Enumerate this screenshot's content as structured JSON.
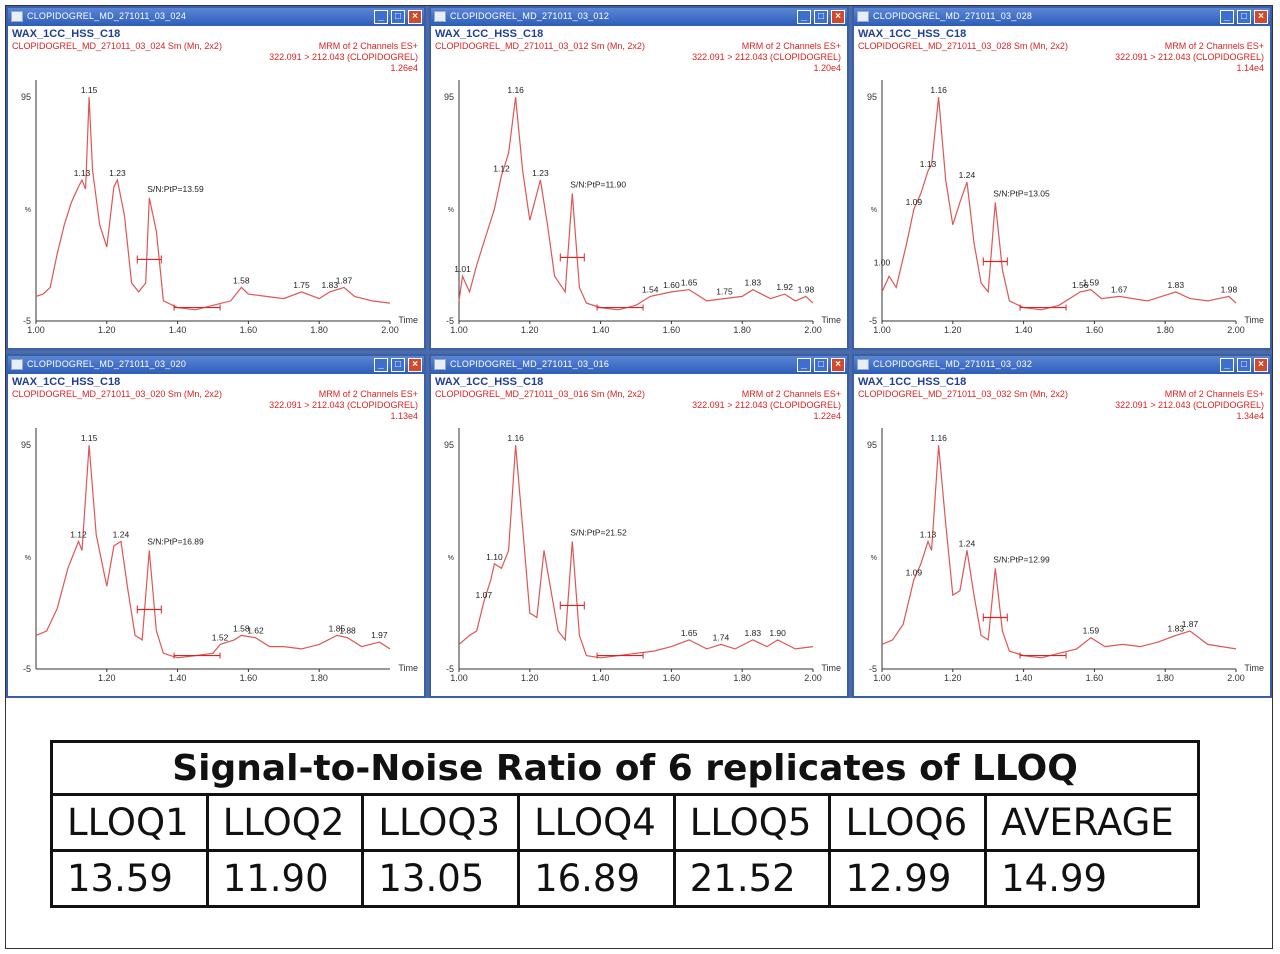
{
  "windows": [
    {
      "title": "CLOPIDOGREL_MD_271011_03_024",
      "header1": "WAX_1CC_HSS_C18",
      "header2": "CLOPIDOGREL_MD_271011_03_024 Sm (Mn, 2x2)",
      "header3": "MRM of 2 Channels ES+",
      "header4": "322.091 > 212.043 (CLOPIDOGREL)",
      "header5": "1.26e4",
      "sn_label": "S/N:PtP=13.59",
      "chart_data": {
        "type": "line",
        "xlim": [
          1.0,
          2.0
        ],
        "ylim": [
          -5,
          100
        ],
        "xticks": [
          "1.00",
          "1.20",
          "1.40",
          "1.60",
          "1.80",
          "2.00"
        ],
        "yticks": [
          "95",
          "%",
          "-5"
        ],
        "xlabel": "Time",
        "x": [
          1.0,
          1.02,
          1.04,
          1.06,
          1.08,
          1.1,
          1.12,
          1.13,
          1.14,
          1.15,
          1.16,
          1.18,
          1.2,
          1.22,
          1.23,
          1.25,
          1.27,
          1.29,
          1.31,
          1.32,
          1.34,
          1.36,
          1.4,
          1.45,
          1.5,
          1.55,
          1.58,
          1.6,
          1.65,
          1.7,
          1.75,
          1.8,
          1.83,
          1.87,
          1.9,
          1.95,
          2.0
        ],
        "y": [
          6,
          7,
          10,
          25,
          38,
          48,
          55,
          58,
          54,
          95,
          62,
          38,
          28,
          55,
          58,
          42,
          12,
          8,
          12,
          50,
          35,
          4,
          1,
          0,
          2,
          4,
          10,
          7,
          6,
          5,
          8,
          5,
          8,
          10,
          6,
          4,
          3
        ],
        "peak_labels": [
          {
            "x": 1.13,
            "y": 58,
            "text": "1.13"
          },
          {
            "x": 1.15,
            "y": 95,
            "text": "1.15"
          },
          {
            "x": 1.23,
            "y": 58,
            "text": "1.23"
          },
          {
            "x": 1.58,
            "y": 10,
            "text": "1.58"
          },
          {
            "x": 1.75,
            "y": 8,
            "text": "1.75"
          },
          {
            "x": 1.83,
            "y": 8,
            "text": "1.83"
          },
          {
            "x": 1.87,
            "y": 10,
            "text": "1.87"
          }
        ],
        "sn_x": 1.32,
        "sn_y": 50
      }
    },
    {
      "title": "CLOPIDOGREL_MD_271011_03_012",
      "header1": "WAX_1CC_HSS_C18",
      "header2": "CLOPIDOGREL_MD_271011_03_012 Sm (Mn, 2x2)",
      "header3": "MRM of 2 Channels ES+",
      "header4": "322.091 > 212.043 (CLOPIDOGREL)",
      "header5": "1.20e4",
      "sn_label": "S/N:PtP=11.90",
      "chart_data": {
        "type": "line",
        "xlim": [
          1.0,
          2.0
        ],
        "ylim": [
          -5,
          100
        ],
        "xticks": [
          "1.00",
          "1.20",
          "1.40",
          "1.60",
          "1.80",
          "2.00"
        ],
        "yticks": [
          "95",
          "%",
          "-5"
        ],
        "xlabel": "Time",
        "x": [
          1.0,
          1.01,
          1.03,
          1.05,
          1.08,
          1.1,
          1.12,
          1.14,
          1.16,
          1.18,
          1.2,
          1.22,
          1.23,
          1.25,
          1.27,
          1.3,
          1.32,
          1.34,
          1.36,
          1.4,
          1.45,
          1.5,
          1.54,
          1.6,
          1.65,
          1.7,
          1.75,
          1.8,
          1.83,
          1.88,
          1.92,
          1.95,
          1.98,
          2.0
        ],
        "y": [
          4,
          15,
          8,
          20,
          35,
          45,
          60,
          70,
          95,
          62,
          40,
          52,
          58,
          38,
          15,
          8,
          52,
          10,
          3,
          1,
          0,
          2,
          6,
          8,
          9,
          4,
          5,
          6,
          9,
          5,
          7,
          4,
          6,
          3
        ],
        "peak_labels": [
          {
            "x": 1.01,
            "y": 15,
            "text": "1.01"
          },
          {
            "x": 1.12,
            "y": 60,
            "text": "1.12"
          },
          {
            "x": 1.16,
            "y": 95,
            "text": "1.16"
          },
          {
            "x": 1.23,
            "y": 58,
            "text": "1.23"
          },
          {
            "x": 1.54,
            "y": 6,
            "text": "1.54"
          },
          {
            "x": 1.6,
            "y": 8,
            "text": "1.60"
          },
          {
            "x": 1.65,
            "y": 9,
            "text": "1.65"
          },
          {
            "x": 1.75,
            "y": 5,
            "text": "1.75"
          },
          {
            "x": 1.83,
            "y": 9,
            "text": "1.83"
          },
          {
            "x": 1.92,
            "y": 7,
            "text": "1.92"
          },
          {
            "x": 1.98,
            "y": 6,
            "text": "1.98"
          }
        ],
        "sn_x": 1.32,
        "sn_y": 52
      }
    },
    {
      "title": "CLOPIDOGREL_MD_271011_03_028",
      "header1": "WAX_1CC_HSS_C18",
      "header2": "CLOPIDOGREL_MD_271011_03_028 Sm (Mn, 2x2)",
      "header3": "MRM of 2 Channels ES+",
      "header4": "322.091 > 212.043 (CLOPIDOGREL)",
      "header5": "1.14e4",
      "sn_label": "S/N:PtP=13.05",
      "chart_data": {
        "type": "line",
        "xlim": [
          1.0,
          2.0
        ],
        "ylim": [
          -5,
          100
        ],
        "xticks": [
          "1.00",
          "1.20",
          "1.40",
          "1.60",
          "1.80",
          "2.00"
        ],
        "yticks": [
          "95",
          "%",
          "-5"
        ],
        "xlabel": "Time",
        "x": [
          1.0,
          1.02,
          1.04,
          1.07,
          1.09,
          1.11,
          1.13,
          1.14,
          1.16,
          1.18,
          1.2,
          1.22,
          1.24,
          1.26,
          1.28,
          1.3,
          1.32,
          1.34,
          1.36,
          1.4,
          1.45,
          1.5,
          1.56,
          1.59,
          1.62,
          1.67,
          1.75,
          1.83,
          1.87,
          1.92,
          1.98,
          2.0
        ],
        "y": [
          8,
          15,
          10,
          30,
          45,
          52,
          62,
          65,
          95,
          58,
          38,
          48,
          57,
          30,
          12,
          8,
          48,
          18,
          4,
          1,
          0,
          2,
          8,
          9,
          5,
          6,
          4,
          8,
          5,
          4,
          6,
          3
        ],
        "peak_labels": [
          {
            "x": 1.0,
            "y": 18,
            "text": "1.00"
          },
          {
            "x": 1.09,
            "y": 45,
            "text": "1.09"
          },
          {
            "x": 1.13,
            "y": 62,
            "text": "1.13"
          },
          {
            "x": 1.16,
            "y": 95,
            "text": "1.16"
          },
          {
            "x": 1.24,
            "y": 57,
            "text": "1.24"
          },
          {
            "x": 1.56,
            "y": 8,
            "text": "1.56"
          },
          {
            "x": 1.59,
            "y": 9,
            "text": "1.59"
          },
          {
            "x": 1.67,
            "y": 6,
            "text": "1.67"
          },
          {
            "x": 1.83,
            "y": 8,
            "text": "1.83"
          },
          {
            "x": 1.98,
            "y": 6,
            "text": "1.98"
          }
        ],
        "sn_x": 1.32,
        "sn_y": 48
      }
    },
    {
      "title": "CLOPIDOGREL_MD_271011_03_020",
      "header1": "WAX_1CC_HSS_C18",
      "header2": "CLOPIDOGREL_MD_271011_03_020 Sm (Mn, 2x2)",
      "header3": "MRM of 2 Channels ES+",
      "header4": "322.091 > 212.043 (CLOPIDOGREL)",
      "header5": "1.13e4",
      "sn_label": "S/N:PtP=16.89",
      "chart_data": {
        "type": "line",
        "xlim": [
          1.0,
          2.0
        ],
        "ylim": [
          -5,
          100
        ],
        "xticks": [
          "1.20",
          "1.40",
          "1.60",
          "1.80"
        ],
        "yticks": [
          "95",
          "%",
          "-5"
        ],
        "xlabel": "Time",
        "x": [
          1.0,
          1.03,
          1.06,
          1.09,
          1.12,
          1.13,
          1.15,
          1.17,
          1.2,
          1.22,
          1.24,
          1.26,
          1.28,
          1.3,
          1.32,
          1.34,
          1.36,
          1.4,
          1.45,
          1.5,
          1.52,
          1.56,
          1.58,
          1.62,
          1.66,
          1.7,
          1.75,
          1.8,
          1.85,
          1.88,
          1.92,
          1.97,
          2.0
        ],
        "y": [
          10,
          12,
          22,
          40,
          52,
          48,
          95,
          55,
          32,
          50,
          52,
          30,
          10,
          8,
          48,
          12,
          2,
          0,
          1,
          2,
          6,
          8,
          10,
          9,
          5,
          5,
          4,
          6,
          10,
          9,
          5,
          7,
          4
        ],
        "peak_labels": [
          {
            "x": 1.12,
            "y": 52,
            "text": "1.12"
          },
          {
            "x": 1.15,
            "y": 95,
            "text": "1.15"
          },
          {
            "x": 1.24,
            "y": 52,
            "text": "1.24"
          },
          {
            "x": 1.52,
            "y": 6,
            "text": "1.52"
          },
          {
            "x": 1.58,
            "y": 10,
            "text": "1.58"
          },
          {
            "x": 1.62,
            "y": 9,
            "text": "1.62"
          },
          {
            "x": 1.85,
            "y": 10,
            "text": "1.85"
          },
          {
            "x": 1.88,
            "y": 9,
            "text": "1.88"
          },
          {
            "x": 1.97,
            "y": 7,
            "text": "1.97"
          }
        ],
        "sn_x": 1.32,
        "sn_y": 48
      }
    },
    {
      "title": "CLOPIDOGREL_MD_271011_03_016",
      "header1": "WAX_1CC_HSS_C18",
      "header2": "CLOPIDOGREL_MD_271011_03_016 Sm (Mn, 2x2)",
      "header3": "MRM of 2 Channels ES+",
      "header4": "322.091 > 212.043 (CLOPIDOGREL)",
      "header5": "1.22e4",
      "sn_label": "S/N:PtP=21.52",
      "chart_data": {
        "type": "line",
        "xlim": [
          1.0,
          2.0
        ],
        "ylim": [
          -5,
          100
        ],
        "xticks": [
          "1.00",
          "1.20",
          "1.40",
          "1.60",
          "1.80",
          "2.00"
        ],
        "yticks": [
          "95",
          "%",
          "-5"
        ],
        "xlabel": "Time",
        "x": [
          1.0,
          1.03,
          1.05,
          1.07,
          1.09,
          1.1,
          1.12,
          1.14,
          1.16,
          1.18,
          1.2,
          1.22,
          1.24,
          1.26,
          1.28,
          1.3,
          1.32,
          1.34,
          1.36,
          1.4,
          1.45,
          1.5,
          1.55,
          1.6,
          1.65,
          1.7,
          1.74,
          1.78,
          1.83,
          1.87,
          1.9,
          1.95,
          2.0
        ],
        "y": [
          6,
          10,
          12,
          25,
          35,
          42,
          40,
          48,
          95,
          58,
          20,
          18,
          48,
          30,
          12,
          8,
          52,
          10,
          1,
          0,
          1,
          2,
          3,
          5,
          8,
          4,
          6,
          4,
          8,
          5,
          8,
          4,
          5
        ],
        "peak_labels": [
          {
            "x": 1.07,
            "y": 25,
            "text": "1.07"
          },
          {
            "x": 1.1,
            "y": 42,
            "text": "1.10"
          },
          {
            "x": 1.16,
            "y": 95,
            "text": "1.16"
          },
          {
            "x": 1.65,
            "y": 8,
            "text": "1.65"
          },
          {
            "x": 1.74,
            "y": 6,
            "text": "1.74"
          },
          {
            "x": 1.83,
            "y": 8,
            "text": "1.83"
          },
          {
            "x": 1.9,
            "y": 8,
            "text": "1.90"
          }
        ],
        "sn_x": 1.32,
        "sn_y": 52
      }
    },
    {
      "title": "CLOPIDOGREL_MD_271011_03_032",
      "header1": "WAX_1CC_HSS_C18",
      "header2": "CLOPIDOGREL_MD_271011_03_032 Sm (Mn, 2x2)",
      "header3": "MRM of 2 Channels ES+",
      "header4": "322.091 > 212.043 (CLOPIDOGREL)",
      "header5": "1.34e4",
      "sn_label": "S/N:PtP=12.99",
      "chart_data": {
        "type": "line",
        "xlim": [
          1.0,
          2.0
        ],
        "ylim": [
          -5,
          100
        ],
        "xticks": [
          "1.00",
          "1.20",
          "1.40",
          "1.60",
          "1.80",
          "2.00"
        ],
        "yticks": [
          "95",
          "%",
          "-5"
        ],
        "xlabel": "Time",
        "x": [
          1.0,
          1.03,
          1.06,
          1.09,
          1.11,
          1.13,
          1.14,
          1.16,
          1.18,
          1.2,
          1.22,
          1.24,
          1.26,
          1.28,
          1.3,
          1.32,
          1.34,
          1.36,
          1.4,
          1.45,
          1.5,
          1.55,
          1.59,
          1.63,
          1.68,
          1.73,
          1.78,
          1.83,
          1.87,
          1.92,
          1.96,
          2.0
        ],
        "y": [
          6,
          8,
          15,
          35,
          42,
          52,
          48,
          95,
          60,
          28,
          30,
          48,
          28,
          10,
          8,
          40,
          12,
          3,
          1,
          0,
          2,
          4,
          9,
          5,
          6,
          5,
          7,
          10,
          12,
          6,
          5,
          4
        ],
        "peak_labels": [
          {
            "x": 1.09,
            "y": 35,
            "text": "1.09"
          },
          {
            "x": 1.13,
            "y": 52,
            "text": "1.13"
          },
          {
            "x": 1.16,
            "y": 95,
            "text": "1.16"
          },
          {
            "x": 1.24,
            "y": 48,
            "text": "1.24"
          },
          {
            "x": 1.59,
            "y": 9,
            "text": "1.59"
          },
          {
            "x": 1.83,
            "y": 10,
            "text": "1.83"
          },
          {
            "x": 1.87,
            "y": 12,
            "text": "1.87"
          }
        ],
        "sn_x": 1.32,
        "sn_y": 40
      }
    }
  ],
  "table": {
    "title": "Signal-to-Noise Ratio of 6 replicates of LLOQ",
    "headers": [
      "LLOQ1",
      "LLOQ2",
      "LLOQ3",
      "LLOQ4",
      "LLOQ5",
      "LLOQ6",
      "AVERAGE"
    ],
    "values": [
      "13.59",
      "11.90",
      "13.05",
      "16.89",
      "21.52",
      "12.99",
      "14.99"
    ]
  },
  "colors": {
    "trace": "#e05555",
    "header_blue": "#1f3d99",
    "header_red": "#dd2222",
    "titlebar": "#3a66c2"
  }
}
